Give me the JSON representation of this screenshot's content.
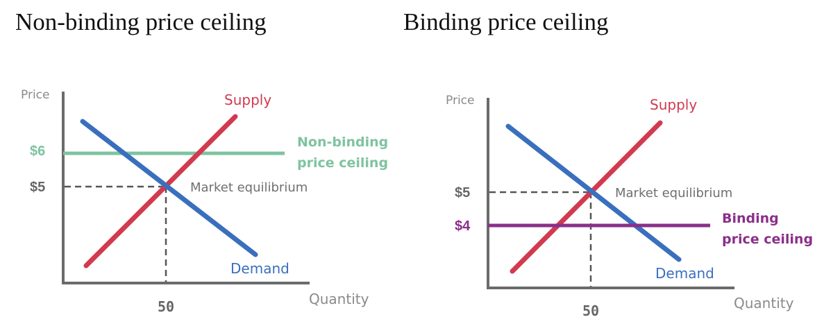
{
  "titles": {
    "left": "Non-binding price ceiling",
    "right": "Binding price ceiling"
  },
  "chart_data": [
    {
      "type": "line",
      "title": "Non-binding price ceiling",
      "xlabel": "Quantity",
      "ylabel": "Price",
      "x_ticks": [
        "50"
      ],
      "y_ticks": [
        "$6",
        "$5"
      ],
      "series": [
        {
          "name": "Supply",
          "color": "#d13a4f"
        },
        {
          "name": "Demand",
          "color": "#3a6fbd"
        }
      ],
      "ceiling": {
        "price": 6,
        "price_label": "$6",
        "label_line1": "Non-binding",
        "label_line2": "price ceiling",
        "color": "#7fc3a0"
      },
      "equilibrium": {
        "price": 5,
        "price_label": "$5",
        "quantity": 50,
        "quantity_label": "50",
        "label": "Market equilibrium"
      }
    },
    {
      "type": "line",
      "title": "Binding price ceiling",
      "xlabel": "Quantity",
      "ylabel": "Price",
      "x_ticks": [
        "50"
      ],
      "y_ticks": [
        "$5",
        "$4"
      ],
      "series": [
        {
          "name": "Supply",
          "color": "#d13a4f"
        },
        {
          "name": "Demand",
          "color": "#3a6fbd"
        }
      ],
      "ceiling": {
        "price": 4,
        "price_label": "$4",
        "label_line1": "Binding",
        "label_line2": "price ceiling",
        "color": "#8a2f8a"
      },
      "equilibrium": {
        "price": 5,
        "price_label": "$5",
        "quantity": 50,
        "quantity_label": "50",
        "label": "Market equilibrium"
      }
    }
  ]
}
